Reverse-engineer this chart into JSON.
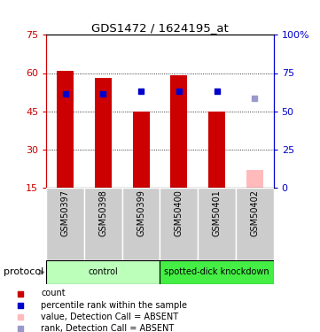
{
  "title": "GDS1472 / 1624195_at",
  "samples": [
    "GSM50397",
    "GSM50398",
    "GSM50399",
    "GSM50400",
    "GSM50401",
    "GSM50402"
  ],
  "bar_values": [
    61,
    58,
    45,
    59,
    45,
    null
  ],
  "bar_colors_present": "#cc0000",
  "bar_color_absent": "#ffbbbb",
  "absent_bar_value": 22,
  "blue_squares_present": [
    52,
    52,
    53,
    53,
    53,
    null
  ],
  "blue_square_absent_val": 50,
  "blue_color_present": "#0000cc",
  "blue_color_absent": "#9999cc",
  "bar_bottom": 15,
  "ylim_left": [
    15,
    75
  ],
  "ylim_right": [
    0,
    100
  ],
  "yticks_left": [
    15,
    30,
    45,
    60,
    75
  ],
  "ytick_labels_left": [
    "15",
    "30",
    "45",
    "60",
    "75"
  ],
  "yticks_right": [
    0,
    25,
    50,
    75,
    100
  ],
  "ytick_labels_right": [
    "0",
    "25",
    "50",
    "75",
    "100%"
  ],
  "left_axis_color": "#cc0000",
  "right_axis_color": "#0000cc",
  "protocol_groups": [
    {
      "label": "control",
      "start": 0,
      "end": 3,
      "color": "#bbffbb"
    },
    {
      "label": "spotted-dick knockdown",
      "start": 3,
      "end": 6,
      "color": "#44ee44"
    }
  ],
  "legend_items": [
    {
      "label": "count",
      "color": "#cc0000"
    },
    {
      "label": "percentile rank within the sample",
      "color": "#0000cc"
    },
    {
      "label": "value, Detection Call = ABSENT",
      "color": "#ffbbbb"
    },
    {
      "label": "rank, Detection Call = ABSENT",
      "color": "#9999cc"
    }
  ],
  "protocol_label": "protocol",
  "bar_width": 0.45,
  "square_size": 18
}
